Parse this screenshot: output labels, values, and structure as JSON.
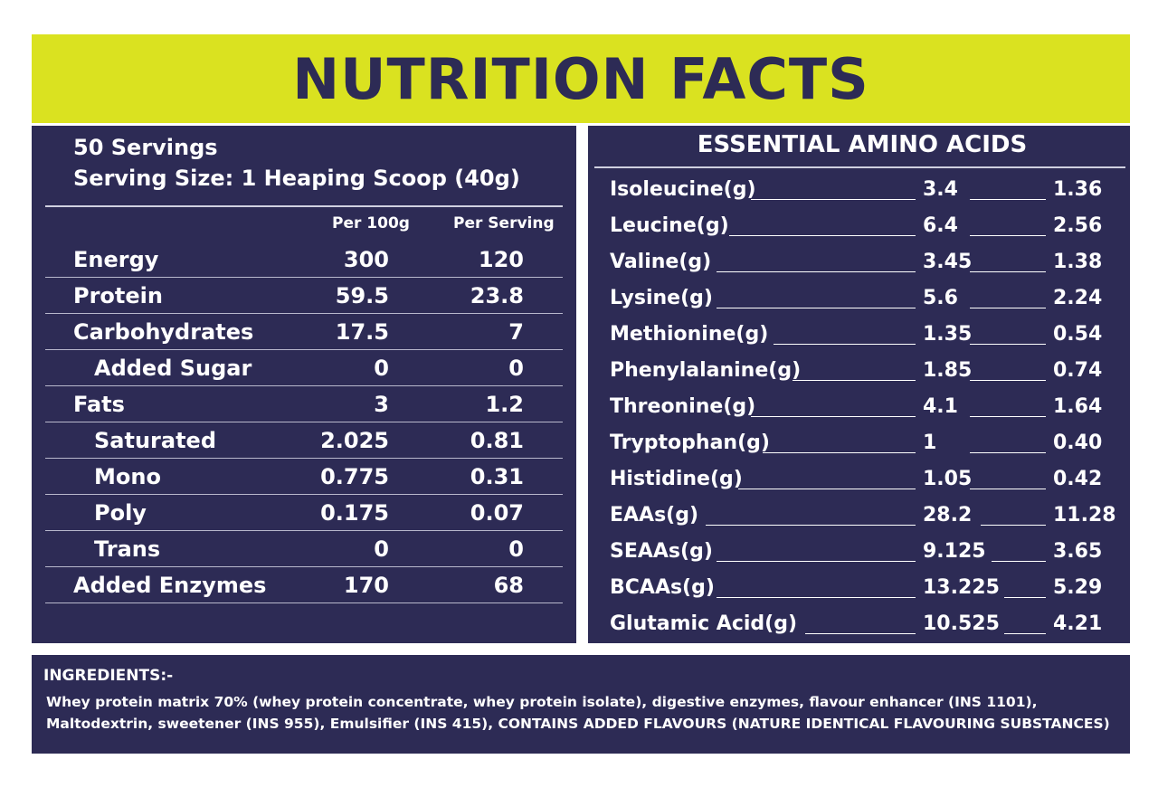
{
  "header": {
    "title": "NUTRITION FACTS"
  },
  "nutrition": {
    "servings": "50 Servings",
    "serving_size": "Serving Size: 1 Heaping Scoop (40g)",
    "col_per_100g": "Per 100g",
    "col_per_serving": "Per Serving",
    "rows": [
      {
        "label": "Energy",
        "per100": "300",
        "perServing": "120"
      },
      {
        "label": "Protein",
        "per100": "59.5",
        "perServing": "23.8"
      },
      {
        "label": "Carbohydrates",
        "per100": "17.5",
        "perServing": "7"
      },
      {
        "label": "Added Sugar",
        "per100": "0",
        "perServing": "0"
      },
      {
        "label": "Fats",
        "per100": "3",
        "perServing": "1.2"
      },
      {
        "label": "Saturated",
        "per100": "2.025",
        "perServing": "0.81"
      },
      {
        "label": "Mono",
        "per100": "0.775",
        "perServing": "0.31"
      },
      {
        "label": "Poly",
        "per100": "0.175",
        "perServing": "0.07"
      },
      {
        "label": "Trans",
        "per100": "0",
        "perServing": "0"
      },
      {
        "label": "Added Enzymes",
        "per100": "170",
        "perServing": "68"
      }
    ]
  },
  "amino": {
    "title": "ESSENTIAL AMINO ACIDS",
    "rows": [
      {
        "label": "Isoleucine(g)",
        "per100": "3.4",
        "perServing": "1.36"
      },
      {
        "label": "Leucine(g)",
        "per100": "6.4",
        "perServing": "2.56"
      },
      {
        "label": "Valine(g)",
        "per100": "3.45",
        "perServing": "1.38"
      },
      {
        "label": "Lysine(g)",
        "per100": "5.6",
        "perServing": "2.24"
      },
      {
        "label": "Methionine(g)",
        "per100": "1.35",
        "perServing": "0.54"
      },
      {
        "label": "Phenylalanine(g)",
        "per100": "1.85",
        "perServing": "0.74"
      },
      {
        "label": "Threonine(g)",
        "per100": "4.1",
        "perServing": "1.64"
      },
      {
        "label": "Tryptophan(g)",
        "per100": "1",
        "perServing": "0.40"
      },
      {
        "label": "Histidine(g)",
        "per100": "1.05",
        "perServing": "0.42"
      },
      {
        "label": "EAAs(g)",
        "per100": "28.2",
        "perServing": "11.28"
      },
      {
        "label": "SEAAs(g)",
        "per100": "9.125",
        "perServing": "3.65"
      },
      {
        "label": "BCAAs(g)",
        "per100": "13.225",
        "perServing": "5.29"
      },
      {
        "label": "Glutamic Acid(g)",
        "per100": "10.525",
        "perServing": "4.21"
      }
    ]
  },
  "ingredients": {
    "title": "INGREDIENTS:-",
    "line1": "Whey protein matrix 70% (whey protein concentrate, whey protein isolate), digestive enzymes, flavour enhancer (INS 1101),",
    "line2": "Maltodextrin, sweetener (INS 955), Emulsifier (INS 415), CONTAINS ADDED FLAVOURS (NATURE IDENTICAL  FLAVOURING SUBSTANCES)"
  },
  "colors": {
    "accent": "#dae220",
    "panel": "#2d2b55",
    "text": "#ffffff"
  }
}
